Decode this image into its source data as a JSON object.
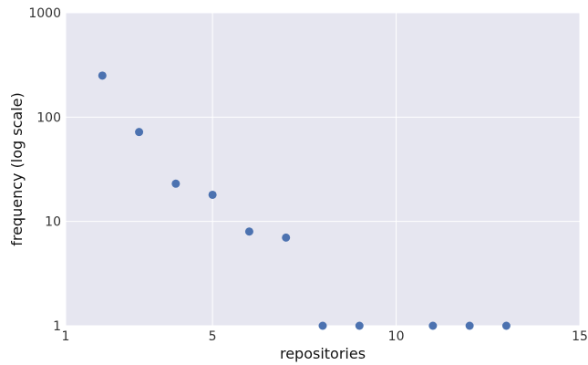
{
  "chart_data": {
    "type": "scatter",
    "title": "",
    "xlabel": "repositories",
    "ylabel": "frequency (log scale)",
    "x": [
      2,
      3,
      4,
      5,
      6,
      7,
      8,
      9,
      11,
      12,
      13
    ],
    "y": [
      250,
      72,
      23,
      18,
      8,
      7,
      1,
      1,
      1,
      1,
      1
    ],
    "xlim": [
      1,
      15
    ],
    "ylim": [
      1,
      1000
    ],
    "yscale": "log",
    "xticks": [
      1,
      5,
      10,
      15
    ],
    "yticks": [
      1,
      10,
      100,
      1000
    ],
    "xtick_labels": [
      "1",
      "5",
      "10",
      "15"
    ],
    "ytick_labels": [
      "1",
      "10",
      "100",
      "1000"
    ],
    "grid": true,
    "colors": {
      "background": "#e6e6f0",
      "grid": "#ffffff",
      "marker": "#4c72b0"
    }
  }
}
